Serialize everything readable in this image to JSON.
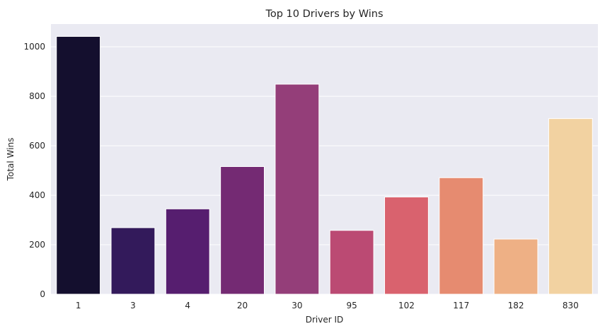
{
  "chart_data": {
    "type": "bar",
    "title": "Top 10 Drivers by Wins",
    "xlabel": "Driver ID",
    "ylabel": "Total Wins",
    "categories": [
      "1",
      "3",
      "4",
      "20",
      "30",
      "95",
      "102",
      "117",
      "182",
      "830"
    ],
    "values": [
      1042,
      269,
      345,
      516,
      849,
      258,
      393,
      471,
      223,
      710
    ],
    "ylim": [
      0,
      1092
    ],
    "yticks": [
      0,
      200,
      400,
      600,
      800,
      1000
    ],
    "grid": true,
    "colors": {
      "plot_background": "#eaeaf2",
      "grid": "#ffffff",
      "bars": [
        "#140f2e",
        "#331a5b",
        "#561e6f",
        "#742a73",
        "#943e79",
        "#bb4a73",
        "#d9626e",
        "#e68b70",
        "#eeb085",
        "#f2d2a1"
      ]
    }
  }
}
